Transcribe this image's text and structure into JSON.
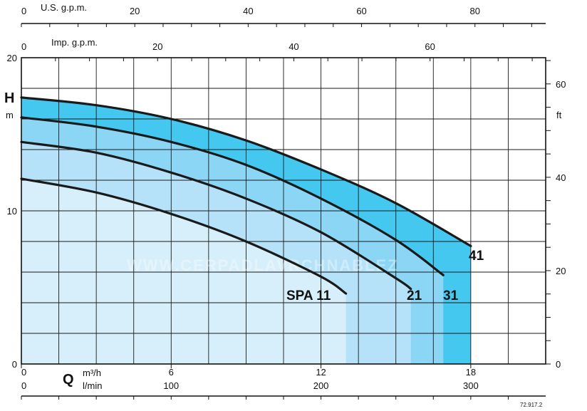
{
  "chart_data": {
    "type": "area",
    "x_primary": {
      "unit": "m³/h",
      "range": [
        0,
        21
      ],
      "ticks": [
        0,
        6,
        12,
        18
      ],
      "label": "Q"
    },
    "x_lmin": {
      "unit": "l/min",
      "ticks": [
        0,
        100,
        200,
        300
      ]
    },
    "x_usgpm": {
      "unit": "U.S. g.p.m.",
      "ticks": [
        0,
        20,
        40,
        60,
        80
      ]
    },
    "x_impgpm": {
      "unit": "Imp. g.p.m.",
      "ticks": [
        0,
        20,
        40,
        60
      ]
    },
    "y_primary": {
      "label": "H",
      "unit": "m",
      "range": [
        0,
        20
      ],
      "ticks": [
        0,
        10,
        20
      ]
    },
    "y_ft": {
      "unit": "ft",
      "ticks": [
        0,
        20,
        40,
        60
      ]
    },
    "grid": true,
    "series": [
      {
        "name": "41",
        "color": "#45c8f0",
        "x": [
          0,
          3,
          6,
          9,
          12,
          15,
          18
        ],
        "y": [
          17.4,
          16.9,
          16.0,
          14.6,
          12.7,
          10.5,
          7.7
        ],
        "end_x": 18
      },
      {
        "name": "31",
        "color": "#8cd6f5",
        "x": [
          0,
          3,
          6,
          9,
          12,
          15,
          16.9
        ],
        "y": [
          16.1,
          15.5,
          14.5,
          13.0,
          10.8,
          8.1,
          5.8
        ],
        "end_x": 16.9
      },
      {
        "name": "21",
        "color": "#b5e2f8",
        "x": [
          0,
          3,
          6,
          9,
          12,
          15,
          15.6
        ],
        "y": [
          14.5,
          13.8,
          12.5,
          10.8,
          8.6,
          5.6,
          4.9
        ],
        "end_x": 15.6
      },
      {
        "name": "SPA 11",
        "color": "#d7effa",
        "x": [
          0,
          3,
          6,
          9,
          12,
          13
        ],
        "y": [
          12.1,
          11.2,
          9.8,
          8.0,
          5.7,
          4.6
        ],
        "end_x": 13
      }
    ],
    "watermark": "WWW.CERPADLAVRCHNABLEZ",
    "reference": "72.917.2"
  }
}
